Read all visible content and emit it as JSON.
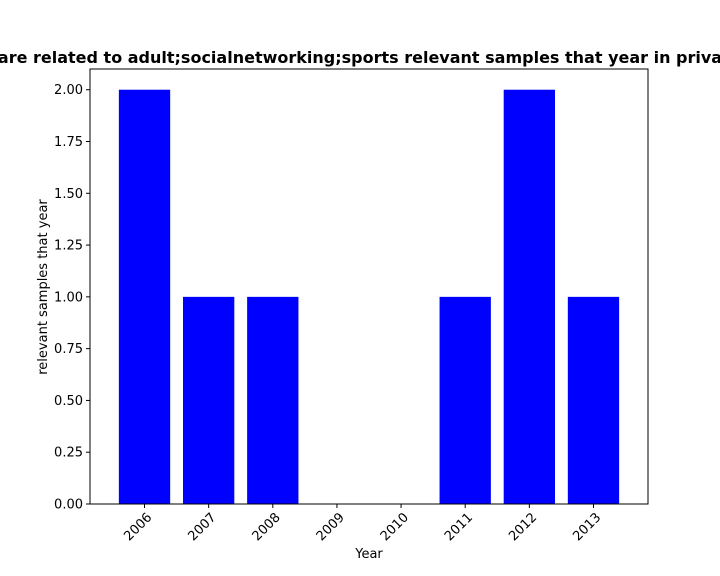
{
  "chart_data": {
    "type": "bar",
    "title": "are related to adult;socialnetworking;sports relevant samples that year in priva",
    "xlabel": "Year",
    "ylabel": "relevant samples that year",
    "categories": [
      "2006",
      "2007",
      "2008",
      "2009",
      "2010",
      "2011",
      "2012",
      "2013"
    ],
    "values": [
      2,
      1,
      1,
      0,
      0,
      1,
      2,
      1
    ],
    "ylim": [
      0,
      2.1
    ],
    "yticks": [
      "0.00",
      "0.25",
      "0.50",
      "0.75",
      "1.00",
      "1.25",
      "1.50",
      "1.75",
      "2.00"
    ],
    "bar_color": "#0000ff",
    "grid": false,
    "legend": "none"
  }
}
